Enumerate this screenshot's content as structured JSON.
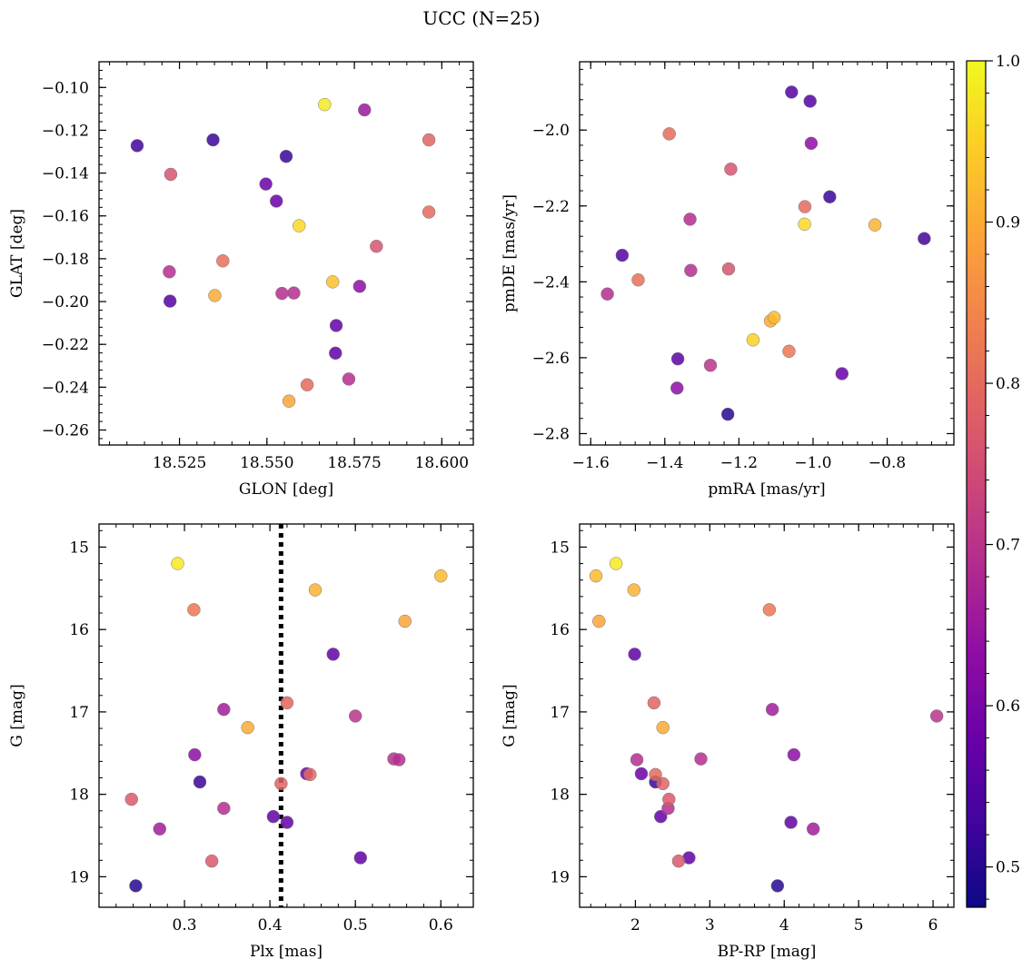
{
  "figure": {
    "title": "UCC (N=25)"
  },
  "colorbar": {
    "colormap": "plasma",
    "vmin": 0.475,
    "vmax": 1.0,
    "ticks": [
      0.5,
      0.6,
      0.7,
      0.8,
      0.9,
      1.0
    ],
    "tick_labels": [
      "0.5",
      "0.6",
      "0.7",
      "0.8",
      "0.9",
      "1.0"
    ]
  },
  "chart_data": [
    {
      "type": "scatter",
      "title": "",
      "xlabel": "GLON [deg]",
      "ylabel": "GLAT [deg]",
      "xlim": [
        18.502,
        18.609
      ],
      "ylim": [
        -0.267,
        -0.088
      ],
      "invert_y": false,
      "xticks": [
        18.525,
        18.55,
        18.575,
        18.6
      ],
      "xtick_labels": [
        "18.525",
        "18.550",
        "18.575",
        "18.600"
      ],
      "yticks": [
        -0.26,
        -0.24,
        -0.22,
        -0.2,
        -0.18,
        -0.16,
        -0.14,
        -0.12,
        -0.1
      ],
      "ytick_labels": [
        "−0.26",
        "−0.24",
        "−0.22",
        "−0.20",
        "−0.18",
        "−0.16",
        "−0.14",
        "−0.12",
        "−0.10"
      ],
      "vline": null,
      "points": [
        {
          "x": 18.5665,
          "y": -0.108,
          "c": 0.98
        },
        {
          "x": 18.5779,
          "y": -0.1105,
          "c": 0.65
        },
        {
          "x": 18.5963,
          "y": -0.1245,
          "c": 0.79
        },
        {
          "x": 18.5129,
          "y": -0.1272,
          "c": 0.53
        },
        {
          "x": 18.5346,
          "y": -0.1245,
          "c": 0.52
        },
        {
          "x": 18.5555,
          "y": -0.1322,
          "c": 0.52
        },
        {
          "x": 18.5225,
          "y": -0.1406,
          "c": 0.76
        },
        {
          "x": 18.5497,
          "y": -0.1451,
          "c": 0.58
        },
        {
          "x": 18.5527,
          "y": -0.1531,
          "c": 0.58
        },
        {
          "x": 18.5963,
          "y": -0.1582,
          "c": 0.8
        },
        {
          "x": 18.5592,
          "y": -0.1646,
          "c": 0.96
        },
        {
          "x": 18.5813,
          "y": -0.1742,
          "c": 0.76
        },
        {
          "x": 18.5374,
          "y": -0.181,
          "c": 0.81
        },
        {
          "x": 18.5221,
          "y": -0.1861,
          "c": 0.69
        },
        {
          "x": 18.5223,
          "y": -0.1998,
          "c": 0.55
        },
        {
          "x": 18.5351,
          "y": -0.1972,
          "c": 0.9
        },
        {
          "x": 18.5543,
          "y": -0.1962,
          "c": 0.69
        },
        {
          "x": 18.5577,
          "y": -0.196,
          "c": 0.69
        },
        {
          "x": 18.5688,
          "y": -0.1908,
          "c": 0.93
        },
        {
          "x": 18.5765,
          "y": -0.1929,
          "c": 0.63
        },
        {
          "x": 18.5698,
          "y": -0.2112,
          "c": 0.57
        },
        {
          "x": 18.5696,
          "y": -0.2241,
          "c": 0.57
        },
        {
          "x": 18.5734,
          "y": -0.2362,
          "c": 0.69
        },
        {
          "x": 18.5615,
          "y": -0.2389,
          "c": 0.8
        },
        {
          "x": 18.5563,
          "y": -0.2465,
          "c": 0.89
        }
      ]
    },
    {
      "type": "scatter",
      "title": "",
      "xlabel": "pmRA [mas/yr]",
      "ylabel": "pmDE [mas/yr]",
      "xlim": [
        -1.63,
        -0.62
      ],
      "ylim": [
        -2.83,
        -1.82
      ],
      "invert_y": false,
      "xticks": [
        -1.6,
        -1.4,
        -1.2,
        -1.0,
        -0.8
      ],
      "xtick_labels": [
        "−1.6",
        "−1.4",
        "−1.2",
        "−1.0",
        "−0.8"
      ],
      "yticks": [
        -2.8,
        -2.6,
        -2.4,
        -2.2,
        -2.0
      ],
      "ytick_labels": [
        "−2.8",
        "−2.6",
        "−2.4",
        "−2.2",
        "−2.0"
      ],
      "vline": null,
      "points": [
        {
          "x": -1.058,
          "y": -1.9,
          "c": 0.55
        },
        {
          "x": -1.008,
          "y": -1.924,
          "c": 0.55
        },
        {
          "x": -1.388,
          "y": -2.01,
          "c": 0.8
        },
        {
          "x": -1.005,
          "y": -2.035,
          "c": 0.63
        },
        {
          "x": -1.222,
          "y": -2.103,
          "c": 0.76
        },
        {
          "x": -0.955,
          "y": -2.176,
          "c": 0.52
        },
        {
          "x": -1.022,
          "y": -2.202,
          "c": 0.8
        },
        {
          "x": -1.332,
          "y": -2.235,
          "c": 0.69
        },
        {
          "x": -1.023,
          "y": -2.248,
          "c": 0.96
        },
        {
          "x": -0.833,
          "y": -2.25,
          "c": 0.91
        },
        {
          "x": -0.7,
          "y": -2.286,
          "c": 0.53
        },
        {
          "x": -1.515,
          "y": -2.33,
          "c": 0.55
        },
        {
          "x": -1.228,
          "y": -2.366,
          "c": 0.76
        },
        {
          "x": -1.33,
          "y": -2.37,
          "c": 0.69
        },
        {
          "x": -1.472,
          "y": -2.395,
          "c": 0.81
        },
        {
          "x": -1.555,
          "y": -2.432,
          "c": 0.69
        },
        {
          "x": -1.105,
          "y": -2.494,
          "c": 0.92
        },
        {
          "x": -1.115,
          "y": -2.503,
          "c": 0.9
        },
        {
          "x": -1.162,
          "y": -2.553,
          "c": 0.95
        },
        {
          "x": -1.065,
          "y": -2.583,
          "c": 0.82
        },
        {
          "x": -1.365,
          "y": -2.603,
          "c": 0.56
        },
        {
          "x": -1.277,
          "y": -2.62,
          "c": 0.7
        },
        {
          "x": -0.922,
          "y": -2.642,
          "c": 0.58
        },
        {
          "x": -1.367,
          "y": -2.68,
          "c": 0.63
        },
        {
          "x": -1.23,
          "y": -2.749,
          "c": 0.5
        }
      ]
    },
    {
      "type": "scatter",
      "title": "",
      "xlabel": "Plx [mas]",
      "ylabel": "G [mag]",
      "xlim": [
        0.2,
        0.638
      ],
      "ylim": [
        19.37,
        14.72
      ],
      "invert_y": true,
      "xticks": [
        0.3,
        0.4,
        0.5,
        0.6
      ],
      "xtick_labels": [
        "0.3",
        "0.4",
        "0.5",
        "0.6"
      ],
      "yticks": [
        15,
        16,
        17,
        18,
        19
      ],
      "ytick_labels": [
        "15",
        "16",
        "17",
        "18",
        "19"
      ],
      "vline": 0.413,
      "points": [
        {
          "x": 0.292,
          "y": 15.2,
          "c": 0.98
        },
        {
          "x": 0.6,
          "y": 15.35,
          "c": 0.92
        },
        {
          "x": 0.453,
          "y": 15.52,
          "c": 0.91
        },
        {
          "x": 0.311,
          "y": 15.76,
          "c": 0.82
        },
        {
          "x": 0.558,
          "y": 15.9,
          "c": 0.89
        },
        {
          "x": 0.474,
          "y": 16.3,
          "c": 0.57
        },
        {
          "x": 0.346,
          "y": 16.97,
          "c": 0.66
        },
        {
          "x": 0.42,
          "y": 16.89,
          "c": 0.79
        },
        {
          "x": 0.5,
          "y": 17.05,
          "c": 0.7
        },
        {
          "x": 0.374,
          "y": 17.19,
          "c": 0.9
        },
        {
          "x": 0.312,
          "y": 17.52,
          "c": 0.63
        },
        {
          "x": 0.545,
          "y": 17.57,
          "c": 0.69
        },
        {
          "x": 0.551,
          "y": 17.58,
          "c": 0.69
        },
        {
          "x": 0.443,
          "y": 17.75,
          "c": 0.58
        },
        {
          "x": 0.447,
          "y": 17.76,
          "c": 0.8
        },
        {
          "x": 0.318,
          "y": 17.85,
          "c": 0.52
        },
        {
          "x": 0.413,
          "y": 17.87,
          "c": 0.79
        },
        {
          "x": 0.238,
          "y": 18.06,
          "c": 0.77
        },
        {
          "x": 0.346,
          "y": 18.17,
          "c": 0.69
        },
        {
          "x": 0.404,
          "y": 18.27,
          "c": 0.57
        },
        {
          "x": 0.42,
          "y": 18.34,
          "c": 0.57
        },
        {
          "x": 0.271,
          "y": 18.42,
          "c": 0.66
        },
        {
          "x": 0.506,
          "y": 18.77,
          "c": 0.57
        },
        {
          "x": 0.332,
          "y": 18.81,
          "c": 0.77
        },
        {
          "x": 0.243,
          "y": 19.11,
          "c": 0.5
        }
      ]
    },
    {
      "type": "scatter",
      "title": "",
      "xlabel": "BP-RP [mag]",
      "ylabel": "G [mag]",
      "xlim": [
        1.25,
        6.28
      ],
      "ylim": [
        19.37,
        14.72
      ],
      "invert_y": true,
      "xticks": [
        2,
        3,
        4,
        5,
        6
      ],
      "xtick_labels": [
        "2",
        "3",
        "4",
        "5",
        "6"
      ],
      "yticks": [
        15,
        16,
        17,
        18,
        19
      ],
      "ytick_labels": [
        "15",
        "16",
        "17",
        "18",
        "19"
      ],
      "vline": null,
      "points": [
        {
          "x": 1.74,
          "y": 15.2,
          "c": 0.98
        },
        {
          "x": 1.47,
          "y": 15.35,
          "c": 0.92
        },
        {
          "x": 1.98,
          "y": 15.52,
          "c": 0.91
        },
        {
          "x": 3.8,
          "y": 15.76,
          "c": 0.82
        },
        {
          "x": 1.51,
          "y": 15.9,
          "c": 0.89
        },
        {
          "x": 1.99,
          "y": 16.3,
          "c": 0.57
        },
        {
          "x": 2.25,
          "y": 16.89,
          "c": 0.79
        },
        {
          "x": 3.84,
          "y": 16.97,
          "c": 0.66
        },
        {
          "x": 6.05,
          "y": 17.05,
          "c": 0.7
        },
        {
          "x": 2.37,
          "y": 17.19,
          "c": 0.9
        },
        {
          "x": 4.13,
          "y": 17.52,
          "c": 0.63
        },
        {
          "x": 2.02,
          "y": 17.58,
          "c": 0.69
        },
        {
          "x": 2.88,
          "y": 17.57,
          "c": 0.69
        },
        {
          "x": 2.08,
          "y": 17.75,
          "c": 0.58
        },
        {
          "x": 2.27,
          "y": 17.76,
          "c": 0.8
        },
        {
          "x": 2.27,
          "y": 17.85,
          "c": 0.52
        },
        {
          "x": 2.37,
          "y": 17.87,
          "c": 0.79
        },
        {
          "x": 2.45,
          "y": 18.06,
          "c": 0.77
        },
        {
          "x": 2.44,
          "y": 18.17,
          "c": 0.69
        },
        {
          "x": 2.34,
          "y": 18.27,
          "c": 0.57
        },
        {
          "x": 4.09,
          "y": 18.34,
          "c": 0.57
        },
        {
          "x": 4.39,
          "y": 18.42,
          "c": 0.66
        },
        {
          "x": 2.72,
          "y": 18.77,
          "c": 0.57
        },
        {
          "x": 2.58,
          "y": 18.81,
          "c": 0.77
        },
        {
          "x": 3.91,
          "y": 19.11,
          "c": 0.5
        }
      ]
    }
  ]
}
